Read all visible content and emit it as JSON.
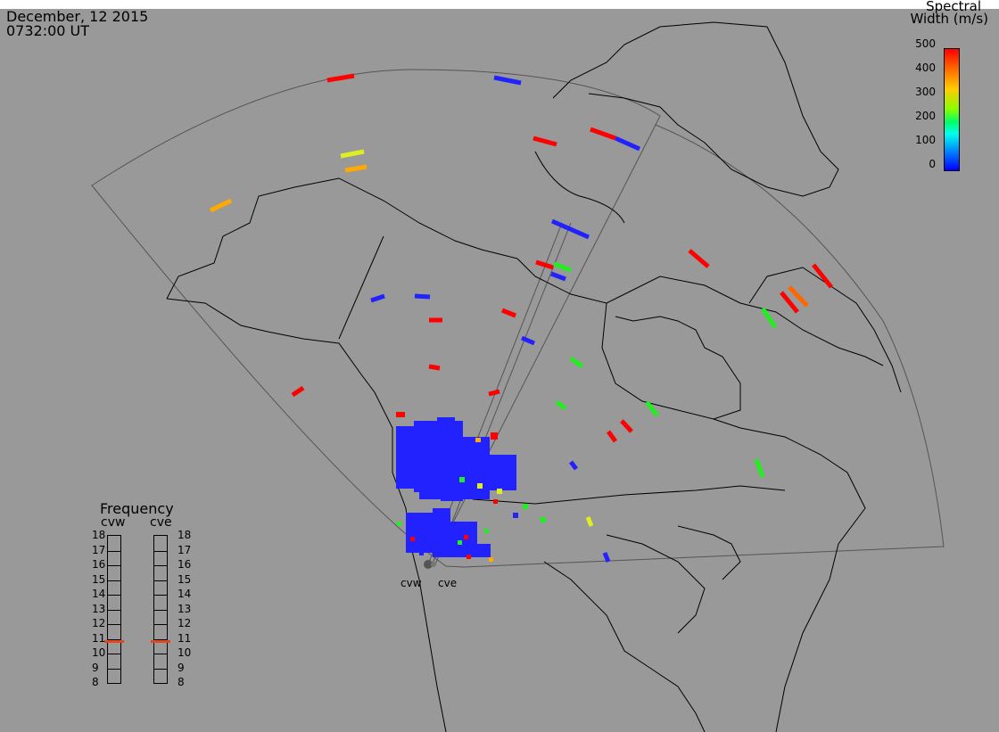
{
  "header": {
    "date": "December, 12 2015",
    "time": "0732:00 UT"
  },
  "colorbar": {
    "title_line1": "Spectral",
    "title_line2": "Width (m/s)",
    "ticks": [
      "500",
      "400",
      "300",
      "200",
      "100",
      "0"
    ],
    "range": [
      0,
      500
    ],
    "colors": [
      "#0000ff",
      "#0066ff",
      "#00ffee",
      "#00ff66",
      "#88ff00",
      "#ffcc00",
      "#ff6600",
      "#ff0000"
    ]
  },
  "frequency_panel": {
    "title": "Frequency",
    "sites": [
      "cvw",
      "cve"
    ],
    "scale": [
      "18",
      "17",
      "16",
      "15",
      "14",
      "13",
      "12",
      "11",
      "10",
      "9",
      "8"
    ],
    "current_mhz": [
      10.8,
      10.8
    ],
    "marker_color": "#e0491f"
  },
  "radars": {
    "left_label": "cvw",
    "right_label": "cve"
  },
  "map": {
    "background": "#999999",
    "coastline_color": "#000000",
    "fov_color": "#555555"
  }
}
